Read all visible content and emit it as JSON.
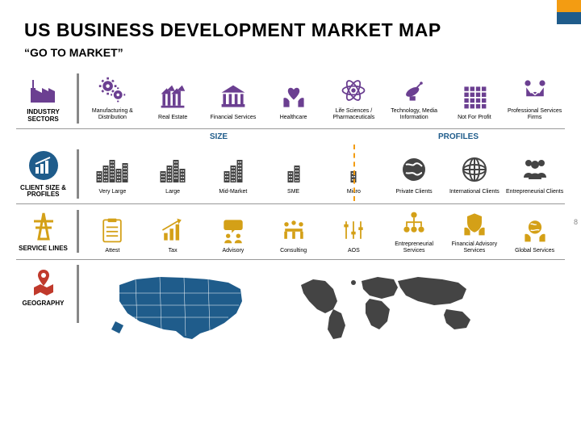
{
  "title": "US BUSINESS DEVELOPMENT MARKET MAP",
  "subtitle": "“GO TO MARKET”",
  "page_number": "8",
  "colors": {
    "purple": "#6b3f91",
    "navy": "#1f5c8b",
    "orange": "#f39c12",
    "yellow": "#d4a017",
    "gold": "#e0a800",
    "gray": "#444444",
    "light_gray": "#888888",
    "usa_map": "#1f5c8b",
    "world_map": "#444444"
  },
  "rows": {
    "sectors": {
      "label": "INDUSTRY SECTORS",
      "items": [
        {
          "label": "Manufacturing & Distribution",
          "icon": "gears",
          "color": "#6b3f91"
        },
        {
          "label": "Real Estate",
          "icon": "building-columns",
          "color": "#6b3f91"
        },
        {
          "label": "Financial Services",
          "icon": "bank",
          "color": "#6b3f91"
        },
        {
          "label": "Healthcare",
          "icon": "hands-heart",
          "color": "#6b3f91"
        },
        {
          "label": "Life Sciences / Pharmaceuticals",
          "icon": "atom",
          "color": "#6b3f91"
        },
        {
          "label": "Technology, Media Information",
          "icon": "satellite",
          "color": "#6b3f91"
        },
        {
          "label": "Not For Profit",
          "icon": "grid",
          "color": "#6b3f91"
        },
        {
          "label": "Professional Services Firms",
          "icon": "handshake",
          "color": "#6b3f91"
        }
      ]
    },
    "size": {
      "label": "CLIENT SIZE & PROFILES",
      "section_size": "SIZE",
      "section_profiles": "PROFILES",
      "items": [
        {
          "label": "Very Large",
          "icon": "buildings-5",
          "color": "#444444"
        },
        {
          "label": "Large",
          "icon": "buildings-4",
          "color": "#444444"
        },
        {
          "label": "Mid-Market",
          "icon": "buildings-3",
          "color": "#444444"
        },
        {
          "label": "SME",
          "icon": "buildings-2",
          "color": "#444444"
        },
        {
          "label": "Micro",
          "icon": "buildings-1",
          "color": "#444444"
        },
        {
          "label": "Private Clients",
          "icon": "globe",
          "color": "#444444"
        },
        {
          "label": "International Clients",
          "icon": "globe-lines",
          "color": "#444444"
        },
        {
          "label": "Entrepreneurial Clients",
          "icon": "people",
          "color": "#444444"
        }
      ]
    },
    "services": {
      "label": "SERVICE LINES",
      "items": [
        {
          "label": "Attest",
          "icon": "checklist",
          "color": "#d4a017"
        },
        {
          "label": "Tax",
          "icon": "chart-up",
          "color": "#d4a017"
        },
        {
          "label": "Advisory",
          "icon": "speech-people",
          "color": "#d4a017"
        },
        {
          "label": "Consulting",
          "icon": "meeting",
          "color": "#d4a017"
        },
        {
          "label": "AOS",
          "icon": "sliders",
          "color": "#d4a017"
        },
        {
          "label": "Entrepreneurial Services",
          "icon": "org-chart",
          "color": "#d4a017"
        },
        {
          "label": "Financial Advisory Services",
          "icon": "shield-hands",
          "color": "#d4a017"
        },
        {
          "label": "Global Services",
          "icon": "globe-hands",
          "color": "#d4a017"
        }
      ]
    },
    "geography": {
      "label": "GEOGRAPHY"
    }
  }
}
